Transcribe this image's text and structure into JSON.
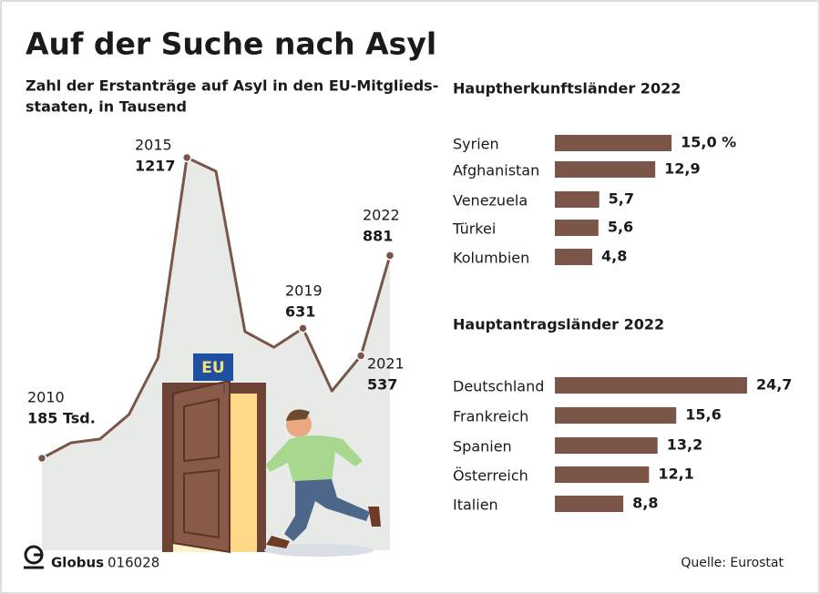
{
  "title": "Auf der Suche nach Asyl",
  "subtitle_lines": [
    "Zahl der Erstanträge auf Asyl in den EU-Mitglieds-",
    "staaten, in Tausend"
  ],
  "sign": "EU",
  "brand": "Globus",
  "code": "016028",
  "source": "Quelle: Eurostat",
  "chart_data": [
    {
      "type": "area",
      "categories": [
        "2010",
        null,
        null,
        null,
        null,
        "2015",
        null,
        null,
        null,
        "2019",
        null,
        "2021",
        "2022"
      ],
      "values": [
        185,
        238,
        251,
        335,
        529,
        1217,
        1170,
        620,
        566,
        631,
        416,
        537,
        881
      ],
      "value_labels": [
        "185 Tsd.",
        null,
        null,
        null,
        null,
        "1217",
        null,
        null,
        null,
        "631",
        null,
        "537",
        "881"
      ],
      "color": "#e8eae7",
      "line_color": "#7a5548"
    },
    {
      "type": "hbar",
      "title": "Hauptherkunftsländer 2022",
      "categories": [
        "Syrien",
        "Afghanistan",
        "Venezuela",
        "Türkei",
        "Kolumbien"
      ],
      "values": [
        15.0,
        12.9,
        5.7,
        5.6,
        4.8
      ],
      "value_labels": [
        "15,0 %",
        "12,9",
        "5,7",
        "5,6",
        "4,8"
      ],
      "color": "#7a5548"
    },
    {
      "type": "hbar",
      "title": "Hauptantragsländer 2022",
      "categories": [
        "Deutschland",
        "Frankreich",
        "Spanien",
        "Österreich",
        "Italien"
      ],
      "values": [
        24.7,
        15.6,
        13.2,
        12.1,
        8.8
      ],
      "value_labels": [
        "24,7",
        "15,6",
        "13,2",
        "12,1",
        "8,8"
      ],
      "color": "#7a5548"
    }
  ]
}
